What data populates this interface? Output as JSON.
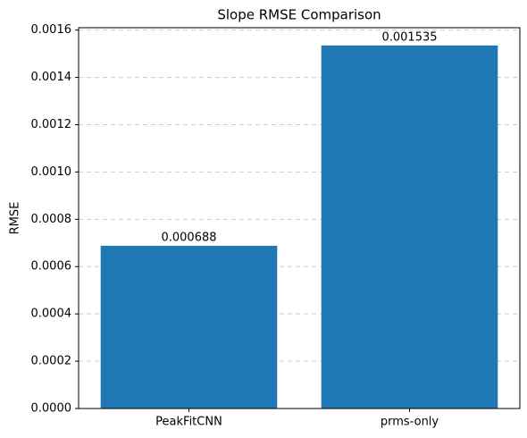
{
  "chart_data": {
    "type": "bar",
    "title": "Slope RMSE Comparison",
    "y_label": "RMSE",
    "categories": [
      "PeakFitCNN",
      "prms-only"
    ],
    "values": [
      0.000688,
      0.001535
    ],
    "color": "#1f77b4",
    "ylim": [
      0,
      0.00161
    ],
    "yticks": [
      {
        "value": 0,
        "label": "0.0000"
      },
      {
        "value": 0.0002,
        "label": "0.0002"
      },
      {
        "value": 0.0004,
        "label": "0.0004"
      },
      {
        "value": 0.0006,
        "label": "0.0006"
      },
      {
        "value": 0.0008,
        "label": "0.0008"
      },
      {
        "value": 0.001,
        "label": "0.0010"
      },
      {
        "value": 0.0012,
        "label": "0.0012"
      },
      {
        "value": 0.0014,
        "label": "0.0014"
      },
      {
        "value": 0.0016,
        "label": "0.0016"
      }
    ],
    "grid": true
  }
}
